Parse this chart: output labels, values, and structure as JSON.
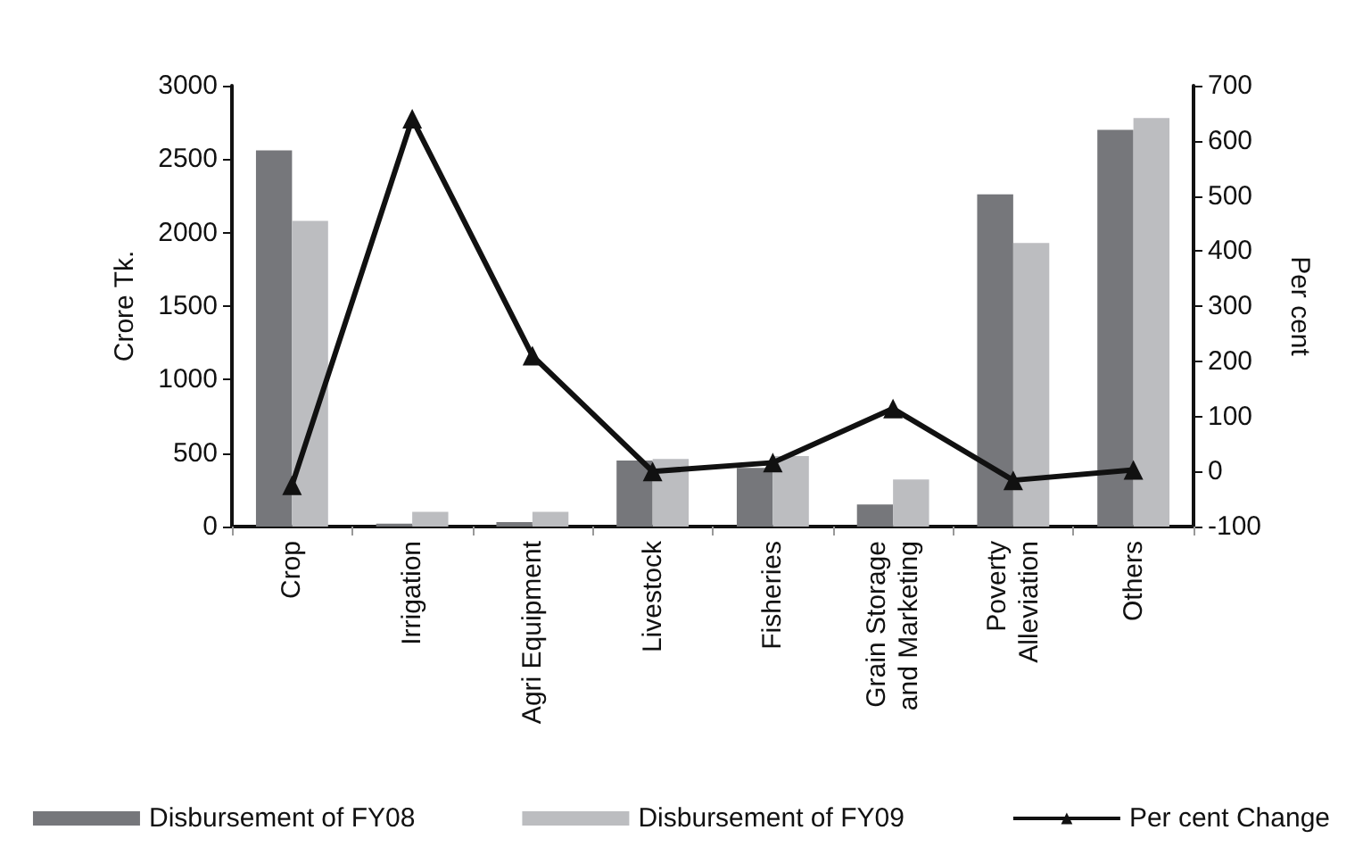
{
  "chart_data": {
    "type": "bar",
    "categories": [
      "Crop",
      "Irrigation",
      "Agri Equipment",
      "Livestock",
      "Fisheries",
      "Grain Storage\nand Marketing",
      "Poverty\nAlleviation",
      "Others"
    ],
    "series": [
      {
        "name": "Disbursement of FY08",
        "color": "#76777b",
        "values": [
          2560,
          20,
          30,
          450,
          400,
          150,
          2260,
          2700
        ]
      },
      {
        "name": "Disbursement of FY09",
        "color": "#bcbdc0",
        "values": [
          2080,
          100,
          100,
          460,
          480,
          320,
          1930,
          2780
        ]
      },
      {
        "name": "Per cent Change",
        "type": "line",
        "axis": "y2",
        "color": "#111111",
        "marker": "triangle",
        "values": [
          -25,
          640,
          210,
          0,
          16,
          114,
          -16,
          3
        ]
      }
    ],
    "ylabel": "Crore Tk.",
    "y2label": "Per cent",
    "ylim": [
      0,
      3000
    ],
    "yticks": [
      0,
      500,
      1000,
      1500,
      2000,
      2500,
      3000
    ],
    "y2lim": [
      -100,
      700
    ],
    "y2ticks": [
      -100,
      0,
      100,
      200,
      300,
      400,
      500,
      600,
      700
    ],
    "grid": false,
    "legend": "bottom"
  }
}
